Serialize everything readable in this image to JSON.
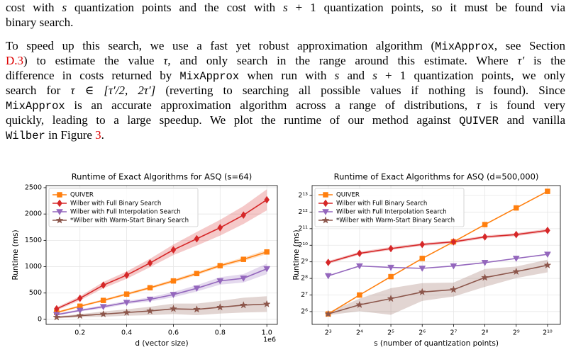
{
  "paragraphs": [
    {
      "lines": [
        [
          "cost with ",
          {
            "text": "s",
            "style": "math"
          },
          " quantization points and the cost with ",
          {
            "text": "s",
            "style": "math"
          },
          " + 1 quantization points, so it must be found via"
        ],
        [
          "binary search."
        ]
      ]
    },
    {
      "lines": [
        [
          "To speed up this search, we use a fast yet robust approximation algorithm (",
          {
            "text": "MixApprox",
            "style": "mono"
          },
          ", see Section"
        ],
        [
          {
            "text": "D.3",
            "style": "link"
          },
          ") to estimate the value ",
          {
            "text": "τ",
            "style": "math"
          },
          ", and only search in the range around this estimate. Where ",
          {
            "text": "τ′",
            "style": "math"
          },
          " is the"
        ],
        [
          "difference in costs returned by ",
          {
            "text": "MixApprox",
            "style": "mono"
          },
          " when run with ",
          {
            "text": "s",
            "style": "math"
          },
          " and ",
          {
            "text": "s",
            "style": "math"
          },
          " + 1 quantization points, we only"
        ],
        [
          "search for ",
          {
            "text": "τ ∈ [τ′/2, 2τ′]",
            "style": "math"
          },
          " (reverting to searching all possible values if nothing is found). Since"
        ],
        [
          {
            "text": "MixApprox",
            "style": "mono"
          },
          " is an accurate approximation algorithm across a range of distributions, ",
          {
            "text": "τ",
            "style": "math"
          },
          " is found very"
        ],
        [
          "quickly, leading to a large speedup. We plot the runtime of our method against ",
          {
            "text": "QUIVER",
            "style": "mono"
          },
          " and vanilla"
        ],
        [
          {
            "text": "Wilber",
            "style": "mono"
          },
          " in Figure ",
          {
            "text": "3",
            "style": "link"
          },
          "."
        ]
      ]
    }
  ],
  "chart_data": [
    {
      "type": "line",
      "title": "Runtime of Exact Algorithms for ASQ (s=64)",
      "x_label": "d (vector size)",
      "y_label": "Runtime (ms)",
      "x_offset_label": "1e6",
      "x": [
        0.1,
        0.2,
        0.3,
        0.4,
        0.5,
        0.6,
        0.7,
        0.8,
        0.9,
        1.0
      ],
      "xlim": [
        0.055,
        1.045
      ],
      "xticks": [
        0.2,
        0.4,
        0.6,
        0.8,
        {
          "value": 1.0,
          "label": "1.0"
        }
      ],
      "ylim": [
        -95,
        2540
      ],
      "yticks": [
        0,
        500,
        1000,
        1500,
        2000,
        2500
      ],
      "grid": true,
      "legend": "upper left",
      "series": [
        {
          "name": "QUIVER",
          "color": "#ff7f0e",
          "marker": "square",
          "values": [
            130,
            250,
            360,
            480,
            600,
            730,
            870,
            1020,
            1140,
            1280
          ],
          "errors": [
            20,
            20,
            20,
            25,
            25,
            30,
            30,
            30,
            35,
            40
          ]
        },
        {
          "name": "Wilber with Full Binary Search",
          "color": "#d62728",
          "marker": "diamond",
          "values": [
            200,
            400,
            650,
            840,
            1070,
            1320,
            1530,
            1740,
            1980,
            2270
          ],
          "errors": [
            30,
            40,
            60,
            70,
            80,
            100,
            130,
            150,
            170,
            200
          ]
        },
        {
          "name": "Wilber with Full Interpolation Search",
          "color": "#9467bd",
          "marker": "triangle-down",
          "values": [
            90,
            170,
            240,
            320,
            380,
            470,
            590,
            730,
            780,
            960
          ],
          "errors": [
            20,
            20,
            30,
            30,
            40,
            50,
            60,
            70,
            80,
            100
          ]
        },
        {
          "name": "*Wilber with Warm-Start Binary Search",
          "color": "#8c564b",
          "marker": "star",
          "values": [
            40,
            70,
            100,
            130,
            160,
            200,
            190,
            230,
            270,
            290
          ],
          "errors": [
            20,
            30,
            50,
            60,
            80,
            100,
            110,
            120,
            140,
            150
          ]
        }
      ]
    },
    {
      "type": "line",
      "title": "Runtime of Exact Algorithms for ASQ (d=500,000)",
      "x_label": "s (number of quantization points)",
      "y_label": "Runtime (ms)",
      "x": [
        8,
        16,
        32,
        64,
        128,
        256,
        512,
        1024
      ],
      "xscale": "log",
      "yscale": "log",
      "log_base": 2,
      "xlim": [
        5.6,
        1360
      ],
      "xticks": [
        {
          "value": 8,
          "label": "2³"
        },
        {
          "value": 16,
          "label": "2⁴"
        },
        {
          "value": 32,
          "label": "2⁵"
        },
        {
          "value": 64,
          "label": "2⁶"
        },
        {
          "value": 128,
          "label": "2⁷"
        },
        {
          "value": 256,
          "label": "2⁸"
        },
        {
          "value": 512,
          "label": "2⁹"
        },
        {
          "value": 1024,
          "label": "2¹⁰"
        }
      ],
      "ylim": [
        37.5,
        12400
      ],
      "yticks": [
        {
          "value": 64,
          "label": "2⁶"
        },
        {
          "value": 128,
          "label": "2⁷"
        },
        {
          "value": 256,
          "label": "2⁸"
        },
        {
          "value": 512,
          "label": "2⁹"
        },
        {
          "value": 1024,
          "label": "2¹⁰"
        },
        {
          "value": 2048,
          "label": "2¹¹"
        },
        {
          "value": 4096,
          "label": "2¹²"
        },
        {
          "value": 8192,
          "label": "2¹³"
        }
      ],
      "grid": true,
      "legend": "upper left",
      "series": [
        {
          "name": "QUIVER",
          "color": "#ff7f0e",
          "marker": "square",
          "values": [
            58,
            128,
            276,
            590,
            1180,
            2430,
            4870,
            9750
          ]
        },
        {
          "name": "Wilber with Full Binary Search",
          "color": "#d62728",
          "marker": "diamond",
          "values": [
            500,
            730,
            890,
            1060,
            1180,
            1450,
            1600,
            1900
          ],
          "lower": [
            470,
            690,
            840,
            1000,
            1110,
            1360,
            1500,
            1780
          ],
          "upper": [
            530,
            780,
            950,
            1120,
            1250,
            1540,
            1700,
            2030
          ]
        },
        {
          "name": "Wilber with Full Interpolation Search",
          "color": "#9467bd",
          "marker": "triangle-down",
          "values": [
            285,
            430,
            405,
            390,
            430,
            495,
            590,
            700
          ]
        },
        {
          "name": "*Wilber with Warm-Start Binary Search",
          "color": "#8c564b",
          "marker": "star",
          "values": [
            58,
            85,
            110,
            145,
            160,
            265,
            340,
            445
          ],
          "lower": [
            55,
            65,
            56,
            100,
            120,
            180,
            260,
            330
          ],
          "upper": [
            62,
            110,
            170,
            210,
            215,
            380,
            420,
            560
          ]
        }
      ]
    }
  ]
}
